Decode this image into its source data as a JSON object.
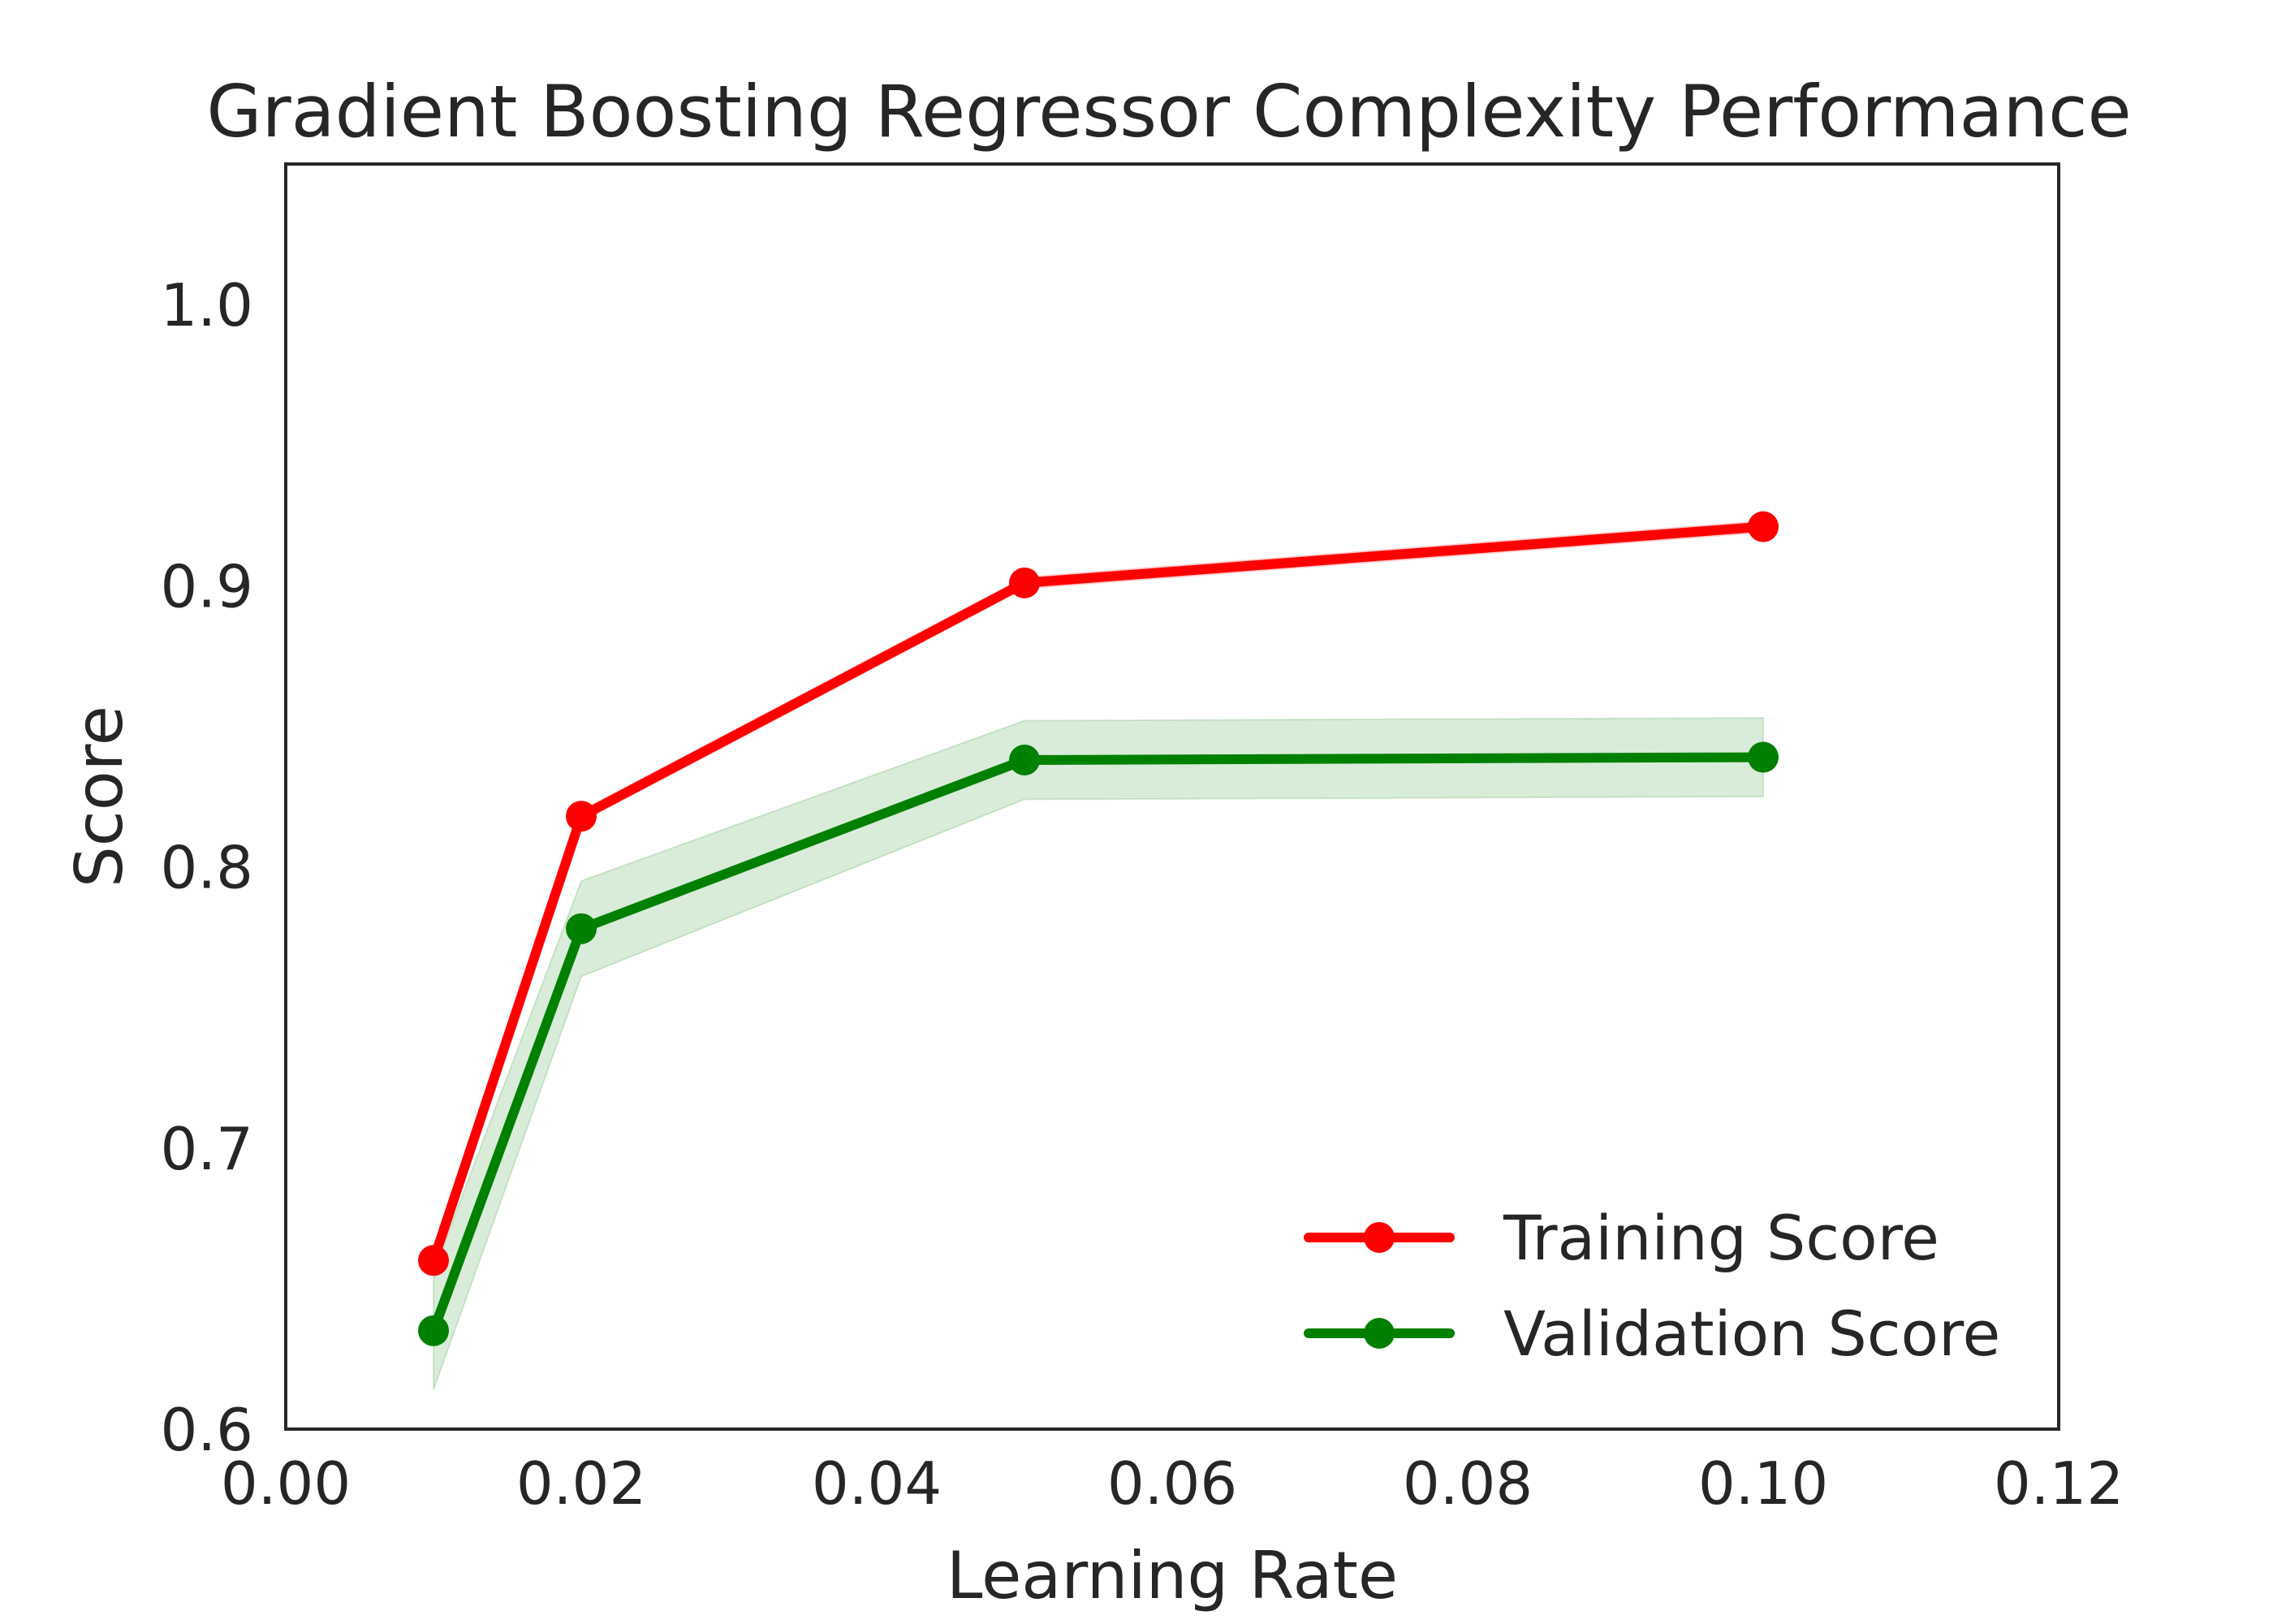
{
  "chart_data": {
    "type": "line",
    "title": "Gradient Boosting Regressor Complexity Performance",
    "xlabel": "Learning Rate",
    "ylabel": "Score",
    "xlim": [
      0.0,
      0.12
    ],
    "ylim": [
      0.6,
      1.05
    ],
    "xticks": [
      0.0,
      0.02,
      0.04,
      0.06,
      0.08,
      0.1,
      0.12
    ],
    "xtick_labels": [
      "0.00",
      "0.02",
      "0.04",
      "0.06",
      "0.08",
      "0.10",
      "0.12"
    ],
    "yticks": [
      0.6,
      0.7,
      0.8,
      0.9,
      1.0
    ],
    "ytick_labels": [
      "0.6",
      "0.7",
      "0.8",
      "0.9",
      "1.0"
    ],
    "grid": false,
    "legend_position": "lower-right",
    "x": [
      0.01,
      0.02,
      0.05,
      0.1
    ],
    "series": [
      {
        "name": "Training Score",
        "color": "#ff0000",
        "values": [
          0.66,
          0.818,
          0.901,
          0.921
        ],
        "band_low": [
          0.657,
          0.816,
          0.899,
          0.919
        ],
        "band_high": [
          0.663,
          0.82,
          0.903,
          0.923
        ]
      },
      {
        "name": "Validation Score",
        "color": "#008000",
        "values": [
          0.635,
          0.778,
          0.838,
          0.839
        ],
        "band_low": [
          0.614,
          0.761,
          0.824,
          0.825
        ],
        "band_high": [
          0.656,
          0.795,
          0.852,
          0.853
        ]
      }
    ]
  }
}
